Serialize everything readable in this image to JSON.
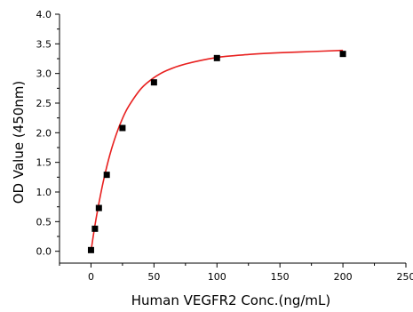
{
  "chart_data": {
    "type": "scatter",
    "title": "",
    "xlabel": "Human VEGFR2 Conc.(ng/mL)",
    "ylabel": "OD Value (450nm)",
    "xlim": [
      -25,
      250
    ],
    "ylim": [
      -0.2,
      4.0
    ],
    "x_ticks": [
      0,
      50,
      100,
      150,
      200,
      250
    ],
    "x_tick_labels": [
      "0",
      "50",
      "100",
      "150",
      "200",
      "250"
    ],
    "y_ticks": [
      0.0,
      0.5,
      1.0,
      1.5,
      2.0,
      2.5,
      3.0,
      3.5,
      4.0
    ],
    "y_tick_labels": [
      "0.0",
      "0.5",
      "1.0",
      "1.5",
      "2.0",
      "2.5",
      "3.0",
      "3.5",
      "4.0"
    ],
    "grid": false,
    "legend": "none",
    "series": [
      {
        "marker": "square",
        "color": "#000000",
        "x": [
          0,
          3.125,
          6.25,
          12.5,
          25,
          50,
          100,
          200
        ],
        "y": [
          0.02,
          0.38,
          0.73,
          1.29,
          2.08,
          2.85,
          3.26,
          3.33
        ]
      }
    ],
    "fit_curve": {
      "color": "#e8201f",
      "x": [
        0,
        3,
        6,
        10,
        15,
        20,
        25,
        30,
        40,
        50,
        60,
        75,
        100,
        125,
        150,
        175,
        200
      ],
      "y": [
        0.0,
        0.42,
        0.78,
        1.2,
        1.63,
        1.97,
        2.24,
        2.45,
        2.75,
        2.93,
        3.05,
        3.16,
        3.27,
        3.32,
        3.35,
        3.37,
        3.39
      ]
    }
  }
}
